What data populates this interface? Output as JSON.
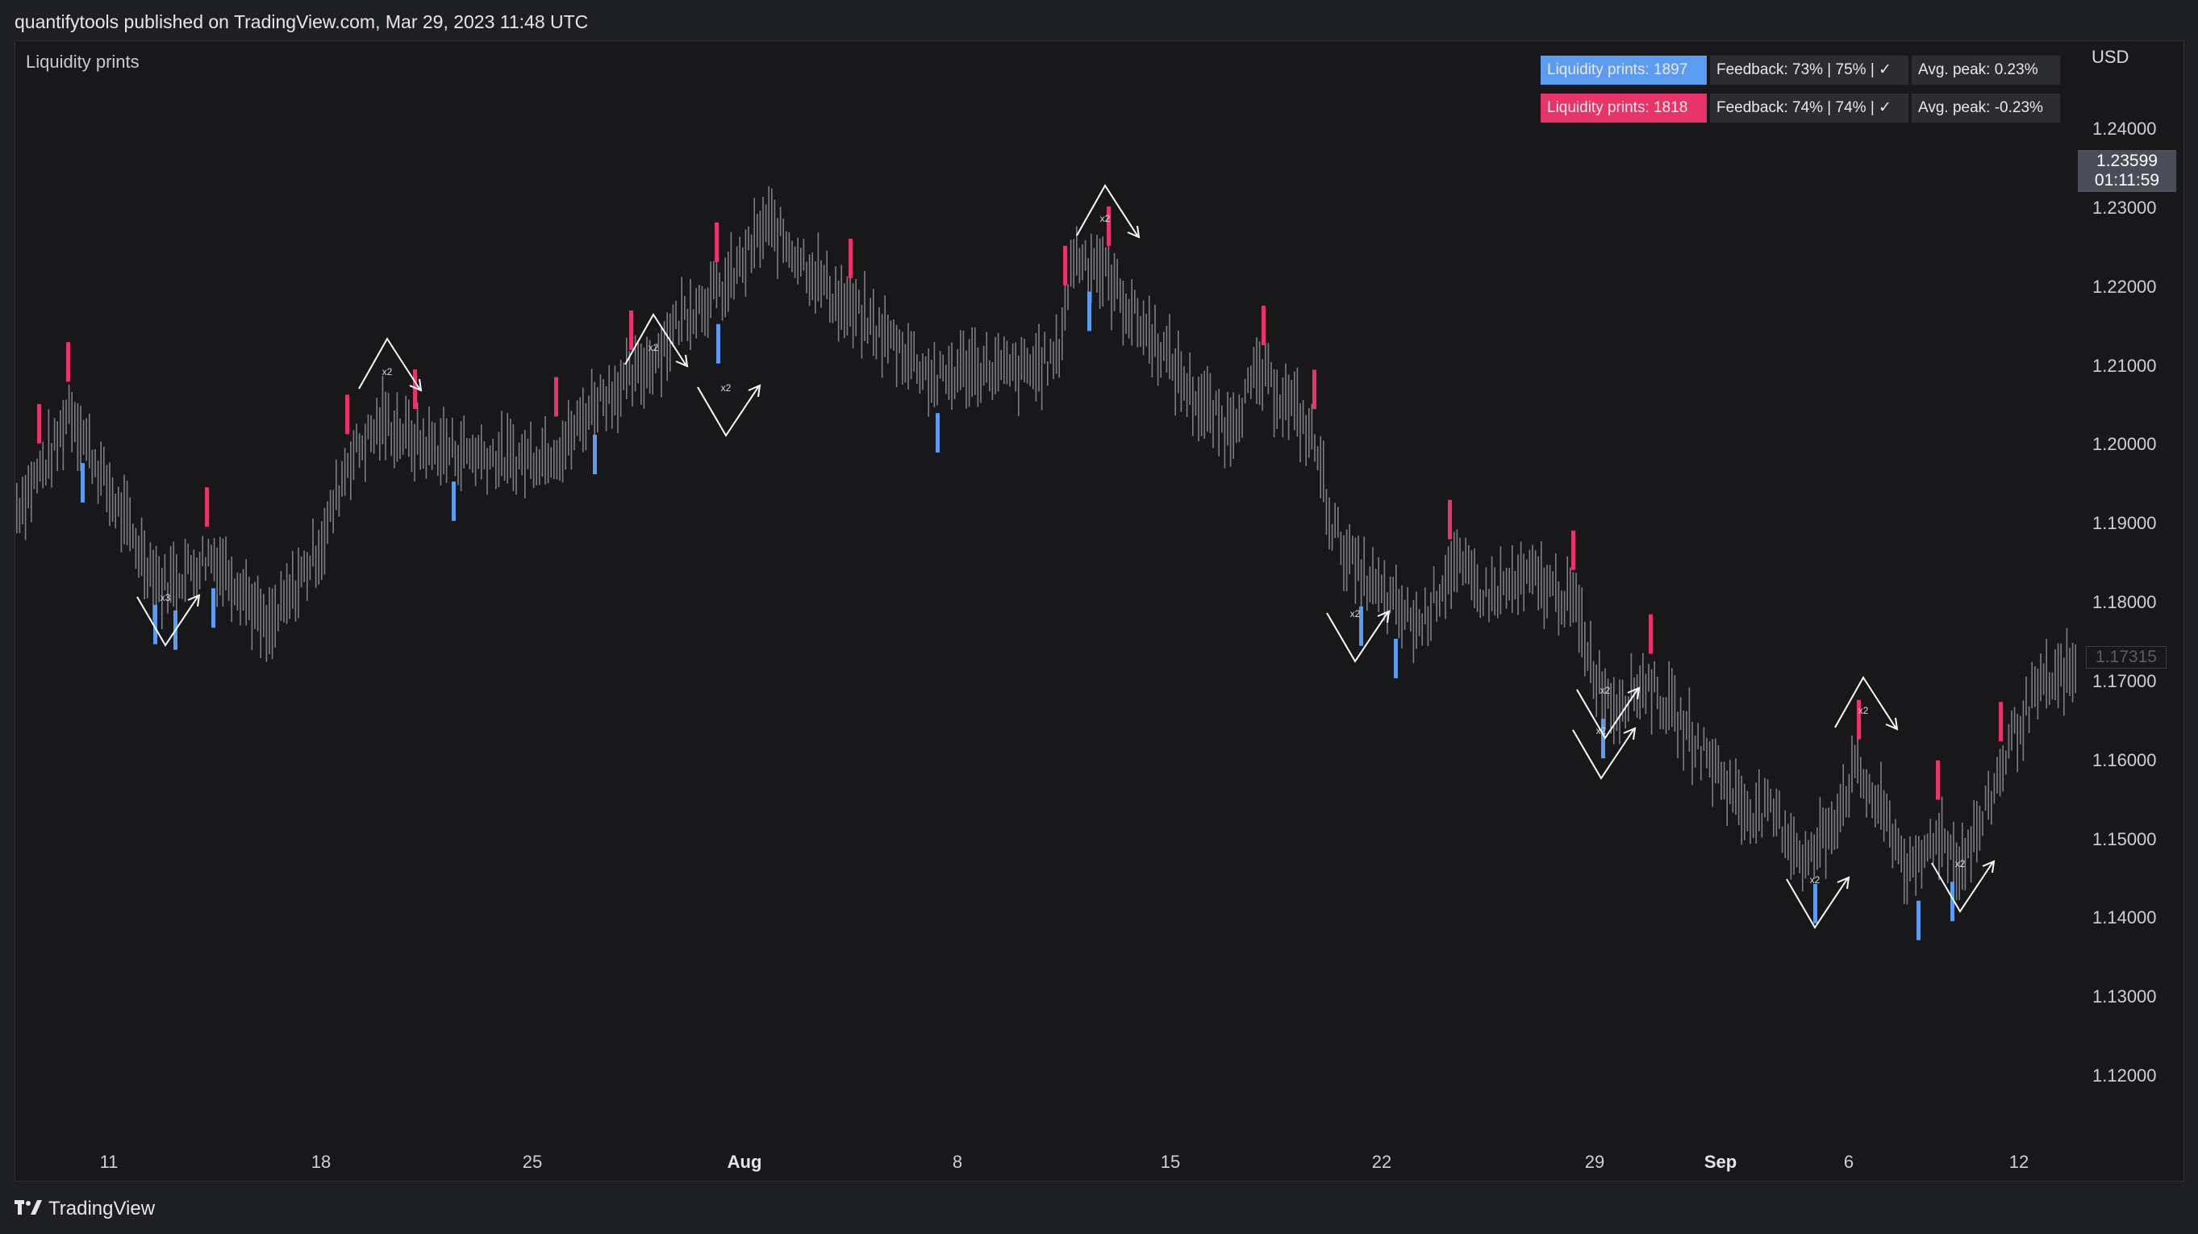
{
  "header": {
    "published": "quantifytools published on TradingView.com, Mar 29, 2023 11:48 UTC"
  },
  "indicator": {
    "name": "Liquidity prints"
  },
  "stats": {
    "bull": {
      "prints": "Liquidity prints: 1897",
      "feedback": "Feedback: 73% | 75% | ✓",
      "peak": "Avg. peak: 0.23%"
    },
    "bear": {
      "prints": "Liquidity prints: 1818",
      "feedback": "Feedback: 74% | 74% | ✓",
      "peak": "Avg. peak: -0.23%"
    }
  },
  "colors": {
    "bull": "#5b9cf0",
    "bear": "#e8336b",
    "candle": "#8f9097",
    "background": "#18181b"
  },
  "price_axis": {
    "currency": "USD",
    "ticks": [
      "1.24000",
      "1.23000",
      "1.22000",
      "1.21000",
      "1.20000",
      "1.19000",
      "1.18000",
      "1.17000",
      "1.16000",
      "1.15000",
      "1.14000",
      "1.13000",
      "1.12000"
    ],
    "last_price": "1.23599",
    "countdown": "01:11:59",
    "ghost_price": "1.17315"
  },
  "time_axis": {
    "labels": [
      {
        "text": "11",
        "bold": false
      },
      {
        "text": "18",
        "bold": false
      },
      {
        "text": "25",
        "bold": false
      },
      {
        "text": "Aug",
        "bold": true
      },
      {
        "text": "8",
        "bold": false
      },
      {
        "text": "15",
        "bold": false
      },
      {
        "text": "22",
        "bold": false
      },
      {
        "text": "29",
        "bold": false
      },
      {
        "text": "Sep",
        "bold": true
      },
      {
        "text": "6",
        "bold": false
      },
      {
        "text": "12",
        "bold": false
      }
    ]
  },
  "annotations": [
    {
      "type": "top",
      "label": "x2"
    },
    {
      "type": "bottom",
      "label": "x3"
    },
    {
      "type": "bottom",
      "label": "x2"
    },
    {
      "type": "top",
      "label": "x2"
    },
    {
      "type": "bottom",
      "label": "x2"
    },
    {
      "type": "top",
      "label": "x2"
    },
    {
      "type": "bottom",
      "label": "x2"
    },
    {
      "type": "bottom",
      "label": "x2"
    },
    {
      "type": "bottom",
      "label": "x2"
    },
    {
      "type": "top",
      "label": "x2"
    },
    {
      "type": "bottom",
      "label": "x2"
    }
  ],
  "footer": {
    "brand": "TradingView"
  }
}
